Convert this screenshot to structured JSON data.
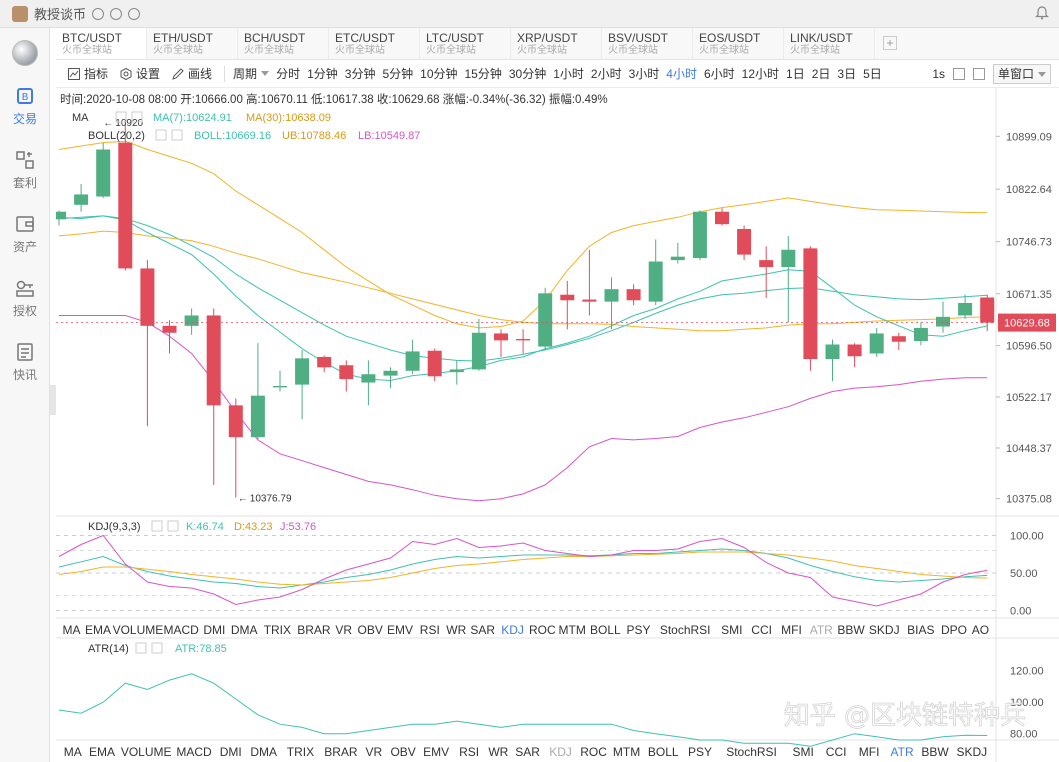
{
  "app": {
    "title": "教授谈币"
  },
  "sidebar": {
    "items": [
      {
        "label": "交易",
        "icon": "trade-icon",
        "active": true
      },
      {
        "label": "套利",
        "icon": "arbitrage-icon",
        "active": false
      },
      {
        "label": "资产",
        "icon": "assets-icon",
        "active": false
      },
      {
        "label": "授权",
        "icon": "key-icon",
        "active": false
      },
      {
        "label": "快讯",
        "icon": "news-icon",
        "active": false
      }
    ]
  },
  "tabs": [
    {
      "symbol": "BTC/USDT",
      "exchange": "火币全球站",
      "active": true
    },
    {
      "symbol": "ETH/USDT",
      "exchange": "火币全球站"
    },
    {
      "symbol": "BCH/USDT",
      "exchange": "火币全球站"
    },
    {
      "symbol": "ETC/USDT",
      "exchange": "火币全球站"
    },
    {
      "symbol": "LTC/USDT",
      "exchange": "火币全球站"
    },
    {
      "symbol": "XRP/USDT",
      "exchange": "火币全球站"
    },
    {
      "symbol": "BSV/USDT",
      "exchange": "火币全球站"
    },
    {
      "symbol": "EOS/USDT",
      "exchange": "火币全球站"
    },
    {
      "symbol": "LINK/USDT",
      "exchange": "火币全球站"
    }
  ],
  "toolbar": {
    "indicator": "指标",
    "settings": "设置",
    "draw": "画线",
    "period_label": "周期",
    "periods": [
      "分时",
      "1分钟",
      "3分钟",
      "5分钟",
      "10分钟",
      "15分钟",
      "30分钟",
      "1小时",
      "2小时",
      "3小时",
      "4小时",
      "6小时",
      "12小时",
      "1日",
      "2日",
      "3日",
      "5日"
    ],
    "active_period": "4小时",
    "right_interval": "1s",
    "window_mode": "单窗口"
  },
  "info": {
    "text": "时间:2020-10-08 08:00  开:10666.00  高:10670.11  低:10617.38  收:10629.68  涨幅:-0.34%(-36.32)  振幅:0.49%"
  },
  "main_legend": {
    "ma_title": "MA",
    "ma7": "MA(7):10624.91",
    "ma30": "MA(30):10638.09",
    "boll_title": "BOLL(20,2)",
    "boll": "BOLL:10669.16",
    "ub": "UB:10788.46",
    "lb": "LB:10549.87"
  },
  "price_axis": [
    "10899.09",
    "10822.64",
    "10746.73",
    "10671.35",
    "10596.50",
    "10522.17",
    "10448.37",
    "10375.08"
  ],
  "current_price": "10629.68",
  "annotations": {
    "high": "10920",
    "low": "10376.79"
  },
  "kdj": {
    "title": "KDJ(9,3,3)",
    "k": "K:46.74",
    "d": "D:43.23",
    "j": "J:53.76",
    "ticks": [
      "100.00",
      "50.00",
      "0.00"
    ]
  },
  "atr": {
    "title": "ATR(14)",
    "value": "ATR:78.85",
    "ticks": [
      "120.00",
      "100.00",
      "80.00"
    ]
  },
  "indicator_row1": [
    "MA",
    "EMA",
    "VOLUME",
    "MACD",
    "DMI",
    "DMA",
    "TRIX",
    "BRAR",
    "VR",
    "OBV",
    "EMV",
    "RSI",
    "WR",
    "SAR",
    "KDJ",
    "ROC",
    "MTM",
    "BOLL",
    "PSY",
    "StochRSI",
    "SMI",
    "CCI",
    "MFI",
    "ATR",
    "BBW",
    "SKDJ",
    "BIAS",
    "DPO",
    "AO"
  ],
  "indicator_row1_active": "KDJ",
  "indicator_row1_dim": "ATR",
  "indicator_row2": [
    "MA",
    "EMA",
    "VOLUME",
    "MACD",
    "DMI",
    "DMA",
    "TRIX",
    "BRAR",
    "VR",
    "OBV",
    "EMV",
    "RSI",
    "WR",
    "SAR",
    "KDJ",
    "ROC",
    "MTM",
    "BOLL",
    "PSY",
    "StochRSI",
    "SMI",
    "CCI",
    "MFI",
    "ATR",
    "BBW",
    "SKDJ"
  ],
  "indicator_row2_active": "ATR",
  "indicator_row2_dim": "KDJ",
  "watermark": "知乎 @区块链特种兵",
  "colors": {
    "up": "#4fae82",
    "down": "#e04c5a",
    "ma7": "#3fc1b0",
    "ma30": "#f0b429",
    "lb": "#d655c8",
    "active": "#3f7be0"
  },
  "chart_data": {
    "type": "candlestick",
    "price_range": [
      10350,
      10940
    ],
    "candles": [
      {
        "o": 10779,
        "h": 10792,
        "l": 10770,
        "c": 10790
      },
      {
        "o": 10800,
        "h": 10830,
        "l": 10790,
        "c": 10815
      },
      {
        "o": 10812,
        "h": 10890,
        "l": 10810,
        "c": 10880
      },
      {
        "o": 10890,
        "h": 10920,
        "l": 10705,
        "c": 10708
      },
      {
        "o": 10708,
        "h": 10720,
        "l": 10480,
        "c": 10625
      },
      {
        "o": 10625,
        "h": 10633,
        "l": 10585,
        "c": 10615
      },
      {
        "o": 10625,
        "h": 10650,
        "l": 10612,
        "c": 10640
      },
      {
        "o": 10640,
        "h": 10650,
        "l": 10395,
        "c": 10510
      },
      {
        "o": 10510,
        "h": 10520,
        "l": 10376.79,
        "c": 10464
      },
      {
        "o": 10464,
        "h": 10600,
        "l": 10460,
        "c": 10524
      },
      {
        "o": 10536,
        "h": 10560,
        "l": 10530,
        "c": 10538
      },
      {
        "o": 10540,
        "h": 10590,
        "l": 10490,
        "c": 10578
      },
      {
        "o": 10580,
        "h": 10582,
        "l": 10558,
        "c": 10565
      },
      {
        "o": 10568,
        "h": 10575,
        "l": 10530,
        "c": 10548
      },
      {
        "o": 10543,
        "h": 10575,
        "l": 10510,
        "c": 10555
      },
      {
        "o": 10553,
        "h": 10565,
        "l": 10535,
        "c": 10560
      },
      {
        "o": 10560,
        "h": 10605,
        "l": 10555,
        "c": 10588
      },
      {
        "o": 10589,
        "h": 10592,
        "l": 10545,
        "c": 10552
      },
      {
        "o": 10558,
        "h": 10575,
        "l": 10540,
        "c": 10562
      },
      {
        "o": 10562,
        "h": 10635,
        "l": 10560,
        "c": 10615
      },
      {
        "o": 10614,
        "h": 10620,
        "l": 10580,
        "c": 10604
      },
      {
        "o": 10606,
        "h": 10620,
        "l": 10585,
        "c": 10604
      },
      {
        "o": 10595,
        "h": 10680,
        "l": 10590,
        "c": 10672
      },
      {
        "o": 10670,
        "h": 10690,
        "l": 10620,
        "c": 10662
      },
      {
        "o": 10663,
        "h": 10735,
        "l": 10640,
        "c": 10660
      },
      {
        "o": 10660,
        "h": 10695,
        "l": 10620,
        "c": 10678
      },
      {
        "o": 10678,
        "h": 10685,
        "l": 10655,
        "c": 10662
      },
      {
        "o": 10660,
        "h": 10750,
        "l": 10655,
        "c": 10718
      },
      {
        "o": 10720,
        "h": 10745,
        "l": 10715,
        "c": 10725
      },
      {
        "o": 10723,
        "h": 10792,
        "l": 10720,
        "c": 10790
      },
      {
        "o": 10790,
        "h": 10795,
        "l": 10770,
        "c": 10772
      },
      {
        "o": 10765,
        "h": 10770,
        "l": 10720,
        "c": 10728
      },
      {
        "o": 10720,
        "h": 10740,
        "l": 10665,
        "c": 10710
      },
      {
        "o": 10710,
        "h": 10755,
        "l": 10630,
        "c": 10735
      },
      {
        "o": 10737,
        "h": 10740,
        "l": 10560,
        "c": 10577
      },
      {
        "o": 10577,
        "h": 10605,
        "l": 10545,
        "c": 10598
      },
      {
        "o": 10598,
        "h": 10600,
        "l": 10565,
        "c": 10581
      },
      {
        "o": 10585,
        "h": 10622,
        "l": 10580,
        "c": 10614
      },
      {
        "o": 10610,
        "h": 10615,
        "l": 10590,
        "c": 10602
      },
      {
        "o": 10603,
        "h": 10630,
        "l": 10597,
        "c": 10622
      },
      {
        "o": 10624,
        "h": 10660,
        "l": 10615,
        "c": 10638
      },
      {
        "o": 10640,
        "h": 10670,
        "l": 10635,
        "c": 10658
      },
      {
        "o": 10666,
        "h": 10670.11,
        "l": 10617.38,
        "c": 10629.68
      }
    ],
    "ma7": [
      10782,
      10780,
      10784,
      10778,
      10760,
      10744,
      10728,
      10700,
      10668,
      10640,
      10616,
      10592,
      10572,
      10555,
      10548,
      10546,
      10553,
      10556,
      10560,
      10566,
      10575,
      10580,
      10592,
      10600,
      10610,
      10625,
      10640,
      10650,
      10664,
      10675,
      10690,
      10695,
      10700,
      10706,
      10704,
      10680,
      10655,
      10638,
      10625,
      10612,
      10610,
      10618,
      10624.91
    ],
    "ma30": [
      10755,
      10758,
      10762,
      10760,
      10755,
      10752,
      10748,
      10740,
      10730,
      10722,
      10712,
      10702,
      10695,
      10688,
      10680,
      10672,
      10664,
      10656,
      10648,
      10640,
      10634,
      10630,
      10628,
      10628,
      10628,
      10627,
      10624,
      10622,
      10620,
      10618,
      10618,
      10620,
      10622,
      10626,
      10628,
      10628,
      10630,
      10632,
      10633,
      10634,
      10635,
      10637,
      10638.09
    ],
    "boll_mid": [
      10780,
      10782,
      10784,
      10780,
      10770,
      10757,
      10741,
      10724,
      10700,
      10680,
      10662,
      10644,
      10626,
      10610,
      10600,
      10590,
      10582,
      10578,
      10575,
      10574,
      10578,
      10584,
      10590,
      10598,
      10607,
      10618,
      10630,
      10643,
      10655,
      10664,
      10670,
      10672,
      10676,
      10679,
      10680,
      10675,
      10670,
      10667,
      10664,
      10663,
      10665,
      10667,
      10669.16
    ],
    "boll_ub": [
      10880,
      10885,
      10890,
      10892,
      10880,
      10870,
      10860,
      10845,
      10820,
      10800,
      10780,
      10760,
      10735,
      10710,
      10690,
      10670,
      10655,
      10640,
      10628,
      10622,
      10624,
      10632,
      10662,
      10705,
      10740,
      10760,
      10770,
      10776,
      10782,
      10790,
      10796,
      10800,
      10805,
      10810,
      10805,
      10800,
      10796,
      10793,
      10792,
      10791,
      10790,
      10789,
      10788.46
    ],
    "boll_lb": [
      10640,
      10640,
      10640,
      10640,
      10630,
      10610,
      10585,
      10545,
      10500,
      10460,
      10440,
      10430,
      10420,
      10410,
      10400,
      10395,
      10388,
      10380,
      10375,
      10372,
      10375,
      10382,
      10395,
      10420,
      10450,
      10462,
      10460,
      10462,
      10465,
      10478,
      10486,
      10492,
      10500,
      10508,
      10520,
      10530,
      10535,
      10537,
      10540,
      10545,
      10548,
      10550,
      10549.87
    ],
    "kdj_k": [
      58,
      65,
      72,
      60,
      52,
      46,
      42,
      38,
      36,
      32,
      30,
      34,
      38,
      44,
      48,
      54,
      62,
      68,
      72,
      70,
      72,
      74,
      74,
      74,
      73,
      74,
      76,
      76,
      78,
      80,
      82,
      80,
      76,
      70,
      60,
      52,
      45,
      40,
      38,
      40,
      42,
      45,
      46.74
    ],
    "kdj_d": [
      48,
      52,
      58,
      58,
      55,
      52,
      48,
      45,
      42,
      38,
      35,
      34,
      36,
      38,
      40,
      44,
      50,
      56,
      60,
      62,
      65,
      68,
      70,
      72,
      72,
      73,
      74,
      75,
      76,
      78,
      78,
      78,
      76,
      74,
      70,
      66,
      60,
      56,
      52,
      48,
      46,
      44,
      43.23
    ],
    "kdj_j": [
      72,
      88,
      100,
      62,
      38,
      32,
      30,
      22,
      8,
      14,
      18,
      28,
      42,
      54,
      62,
      70,
      92,
      88,
      96,
      84,
      86,
      90,
      80,
      76,
      72,
      74,
      80,
      80,
      82,
      92,
      96,
      84,
      64,
      50,
      44,
      18,
      12,
      6,
      14,
      22,
      38,
      48,
      53.76
    ],
    "atr": [
      95,
      93,
      100,
      112,
      108,
      114,
      118,
      112,
      102,
      92,
      86,
      84,
      80,
      80,
      82,
      84,
      86,
      86,
      88,
      86,
      84,
      86,
      86,
      86,
      86,
      86,
      82,
      80,
      78,
      76,
      76,
      74,
      74,
      74,
      72,
      76,
      80,
      78,
      76,
      76,
      78,
      79,
      78.85
    ]
  }
}
